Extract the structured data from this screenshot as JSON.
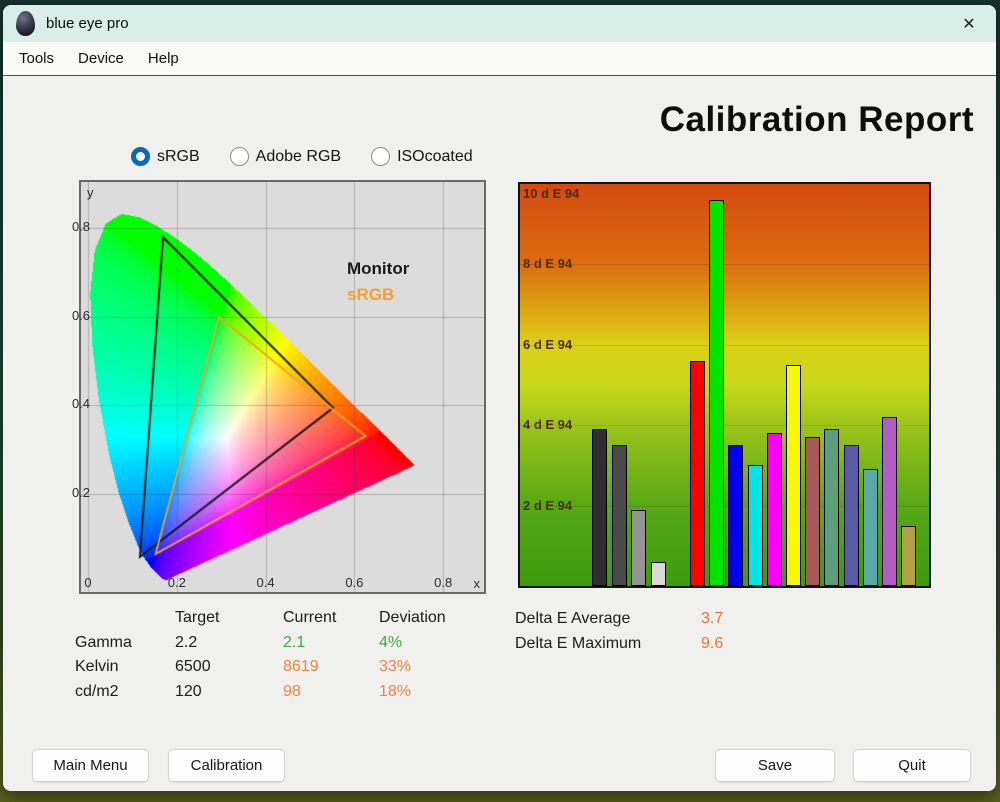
{
  "window": {
    "title": "blue eye pro",
    "close_glyph": "✕"
  },
  "menu": {
    "items": [
      "Tools",
      "Device",
      "Help"
    ]
  },
  "report": {
    "title": "Calibration Report"
  },
  "profiles": {
    "options": [
      {
        "label": "sRGB",
        "selected": true
      },
      {
        "label": "Adobe RGB",
        "selected": false
      },
      {
        "label": "ISOcoated",
        "selected": false
      }
    ]
  },
  "chart_data": [
    {
      "type": "scatter",
      "name": "CIE 1931 xy chromaticity diagram with gamut triangles",
      "xlabel": "x",
      "ylabel": "y",
      "xlim": [
        -0.016,
        0.872
      ],
      "ylim": [
        -0.023,
        0.905
      ],
      "x_ticks": [
        0,
        0.2,
        0.4,
        0.6,
        0.8
      ],
      "y_ticks": [
        0.2,
        0.4,
        0.6,
        0.8
      ],
      "grid": true,
      "legend_position": "inside-right",
      "series": [
        {
          "name": "Monitor",
          "color": "#1a1a1a",
          "points": [
            [
              0.169,
              0.78
            ],
            [
              0.552,
              0.394
            ],
            [
              0.117,
              0.057
            ]
          ]
        },
        {
          "name": "sRGB",
          "color": "#f7a127",
          "points": [
            [
              0.295,
              0.6
            ],
            [
              0.625,
              0.33
            ],
            [
              0.152,
              0.063
            ]
          ]
        }
      ]
    },
    {
      "type": "bar",
      "name": "Delta E 94 per measured color patch",
      "ylabel": "dE94",
      "ylim": [
        0,
        10
      ],
      "grid": true,
      "y_tick_values": [
        2,
        4,
        6,
        8,
        10
      ],
      "y_tick_labels": [
        "2 d E 94",
        "4 d E 94",
        "6 d E 94",
        "8 d E 94",
        "10 d E 94"
      ],
      "bars": [
        {
          "color": "#2e2e2e",
          "value": 3.9
        },
        {
          "color": "#4a4a4a",
          "value": 3.5
        },
        {
          "color": "#949494",
          "value": 1.9
        },
        {
          "color": "#d9d9d9",
          "value": 0.6
        },
        {
          "color": "#fe0000",
          "value": 5.6
        },
        {
          "color": "#00e400",
          "value": 9.6
        },
        {
          "color": "#0000ee",
          "value": 3.5
        },
        {
          "color": "#00e6e6",
          "value": 3.0
        },
        {
          "color": "#fb00fb",
          "value": 3.8
        },
        {
          "color": "#f8f800",
          "value": 5.5
        },
        {
          "color": "#a85a5a",
          "value": 3.7
        },
        {
          "color": "#5aa07a",
          "value": 3.9
        },
        {
          "color": "#5a5aa8",
          "value": 3.5
        },
        {
          "color": "#5aa8a8",
          "value": 2.9
        },
        {
          "color": "#b35cc4",
          "value": 4.2
        },
        {
          "color": "#b0a04a",
          "value": 1.5
        }
      ]
    }
  ],
  "results_table": {
    "headers": [
      "",
      "Target",
      "Current",
      "Deviation"
    ],
    "rows": [
      {
        "label": "Gamma",
        "target": "2.2",
        "current": "2.1",
        "deviation": "4%",
        "status": "good"
      },
      {
        "label": "Kelvin",
        "target": "6500",
        "current": "8619",
        "deviation": "33%",
        "status": "warn"
      },
      {
        "label": "cd/m2",
        "target": "120",
        "current": "98",
        "deviation": "18%",
        "status": "warn"
      }
    ]
  },
  "delta_e": {
    "rows": [
      {
        "label": "Delta E Average",
        "value": "3.7"
      },
      {
        "label": "Delta E Maximum",
        "value": "9.6"
      }
    ]
  },
  "footer": {
    "main_menu": "Main Menu",
    "calibration": "Calibration",
    "save": "Save",
    "quit": "Quit"
  },
  "colors": {
    "good": "#3fa83f",
    "warn": "#f5813a",
    "value_orange": "#ee7236",
    "monitor_triangle": "#1a1a1a",
    "srgb_triangle": "#f7a127"
  }
}
